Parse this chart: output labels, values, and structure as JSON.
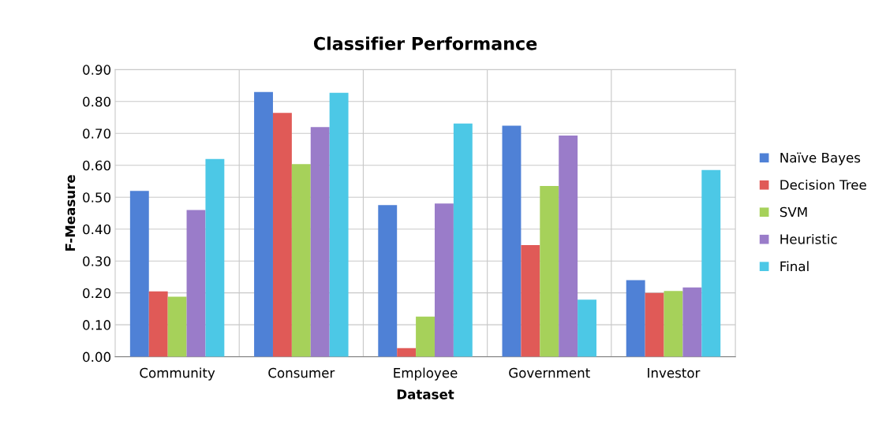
{
  "chart_data": {
    "type": "bar",
    "title": "Classifier Performance",
    "xlabel": "Dataset",
    "ylabel": "F-Measure",
    "categories": [
      "Community",
      "Consumer",
      "Employee",
      "Government",
      "Investor"
    ],
    "series": [
      {
        "name": "Naïve Bayes",
        "color": "#4f81d6",
        "values": [
          0.52,
          0.83,
          0.475,
          0.724,
          0.24
        ]
      },
      {
        "name": "Decision Tree",
        "color": "#e05a57",
        "values": [
          0.205,
          0.764,
          0.027,
          0.35,
          0.2
        ]
      },
      {
        "name": "SVM",
        "color": "#a6d15a",
        "values": [
          0.188,
          0.604,
          0.126,
          0.535,
          0.206
        ]
      },
      {
        "name": "Heuristic",
        "color": "#9a7cc9",
        "values": [
          0.46,
          0.72,
          0.48,
          0.693,
          0.217
        ]
      },
      {
        "name": "Final",
        "color": "#4cc8e6",
        "values": [
          0.62,
          0.827,
          0.731,
          0.179,
          0.585
        ]
      }
    ],
    "ylim": [
      0,
      0.9
    ],
    "yticks": [
      {
        "value": 0,
        "label": "0.00"
      },
      {
        "value": 0.1,
        "label": "0.10"
      },
      {
        "value": 0.2,
        "label": "0.20"
      },
      {
        "value": 0.3,
        "label": "0.30"
      },
      {
        "value": 0.4,
        "label": "0.40"
      },
      {
        "value": 0.5,
        "label": "0.50"
      },
      {
        "value": 0.6,
        "label": "0.60"
      },
      {
        "value": 0.7,
        "label": "0.70"
      },
      {
        "value": 0.8,
        "label": "0.80"
      },
      {
        "value": 0.9,
        "label": "0.90"
      }
    ],
    "grid": true,
    "legend": "right"
  }
}
